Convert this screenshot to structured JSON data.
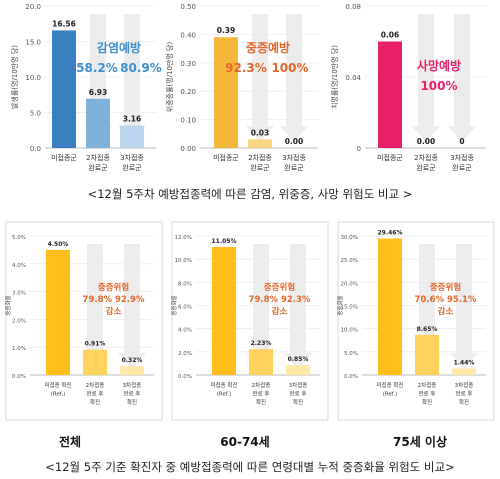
{
  "top_caption": "<12월 5주차 예방접종력에 따른 감염, 위중증, 사망 위험도 비교 >",
  "bottom_caption": "<12월 5주 기준 확진자 중 예방접종력에 따른 연령대별 누적 중증화율 위험도 비교>",
  "group_labels": [
    "전체",
    "60-74세",
    "75세 이상"
  ],
  "chart_data": [
    {
      "type": "bar",
      "ylabel": "발생률(명/10만명 당)",
      "ylim": [
        0,
        20
      ],
      "yticks": [
        "0.0",
        "5.0",
        "10.0",
        "15.0",
        "20.0"
      ],
      "categories": [
        "미접종군",
        "2차접종\n완료군",
        "3차접종\n완료군"
      ],
      "values": [
        16.56,
        6.93,
        3.16
      ],
      "value_labels": [
        "16.56",
        "6.93",
        "3.16"
      ],
      "colors": [
        "#3a7fbf",
        "#7fb2db",
        "#b9d6ee"
      ],
      "annotation": {
        "title": "감염예방",
        "values": [
          "58.2%",
          "80.9%"
        ],
        "color": "#3d8fcf"
      }
    },
    {
      "type": "bar",
      "ylabel": "위중증률(명/10만명 당)",
      "ylim": [
        0,
        0.5
      ],
      "yticks": [
        "0.00",
        "0.10",
        "0.20",
        "0.30",
        "0.40",
        "0.50"
      ],
      "categories": [
        "미접종군",
        "2차접종\n완료군",
        "3차접종\n완료군"
      ],
      "values": [
        0.39,
        0.03,
        0.0
      ],
      "value_labels": [
        "0.39",
        "0.03",
        "0.00"
      ],
      "colors": [
        "#f5b73a",
        "#f8d47e",
        "#fbe7b4"
      ],
      "annotation": {
        "title": "중증예방",
        "values": [
          "92.3%",
          "100%"
        ],
        "color": "#e2672a"
      }
    },
    {
      "type": "bar",
      "ylabel": "치명률(명/10만명 당)",
      "ylim": [
        0,
        0.08
      ],
      "yticks": [
        "0",
        "0.04",
        "0.08"
      ],
      "categories": [
        "미접종군",
        "2차접종\n완료군",
        "3차접종\n완료군"
      ],
      "values": [
        0.06,
        0.0,
        0.0
      ],
      "value_labels": [
        "0.06",
        "0.00",
        "0"
      ],
      "colors": [
        "#e8206a",
        "#f290b5",
        "#f7c2d6"
      ],
      "annotation": {
        "title": "사망예방",
        "values": [
          "100%"
        ],
        "color": "#e8206a"
      }
    },
    {
      "type": "bar",
      "ylabel": "중증화율",
      "ylim": [
        0,
        5
      ],
      "yticks": [
        "0.0%",
        "1.0%",
        "2.0%",
        "3.0%",
        "4.0%",
        "5.0%"
      ],
      "categories": [
        "미접종 확진\n(Ref.)",
        "2차접종\n완료 후\n확진",
        "3차접종\n완료 후\n확진"
      ],
      "values": [
        4.5,
        0.91,
        0.32
      ],
      "value_labels": [
        "4.50%",
        "0.91%",
        "0.32%"
      ],
      "colors": [
        "#ffbf1a",
        "#ffd25c",
        "#ffe9a8"
      ],
      "annotation": {
        "lines": [
          "중증위험",
          "79.8%  92.9%",
          "감소"
        ],
        "color": "#e2672a"
      }
    },
    {
      "type": "bar",
      "ylabel": "중증화율",
      "ylim": [
        0,
        12
      ],
      "yticks": [
        "0.0%",
        "2.0%",
        "4.0%",
        "6.0%",
        "8.0%",
        "10.0%",
        "12.0%"
      ],
      "categories": [
        "미접종 확진\n(Ref.)",
        "2차접종\n완료 후\n확진",
        "3차접종\n완료 후\n확진"
      ],
      "values": [
        11.05,
        2.23,
        0.85
      ],
      "value_labels": [
        "11.05%",
        "2.23%",
        "0.85%"
      ],
      "colors": [
        "#ffbf1a",
        "#ffd25c",
        "#ffe9a8"
      ],
      "annotation": {
        "lines": [
          "중증위험",
          "79.8%  92.3%",
          "감소"
        ],
        "color": "#e2672a"
      }
    },
    {
      "type": "bar",
      "ylabel": "중증화율",
      "ylim": [
        0,
        30
      ],
      "yticks": [
        "0.0%",
        "5.0%",
        "10.0%",
        "15.0%",
        "20.0%",
        "25.0%",
        "30.0%"
      ],
      "categories": [
        "미접종 확진\n(Ref.)",
        "2차접종\n완료 후\n확진",
        "3차접종\n완료 후\n확진"
      ],
      "values": [
        29.46,
        8.65,
        1.44
      ],
      "value_labels": [
        "29.46%",
        "8.65%",
        "1.44%"
      ],
      "colors": [
        "#ffbf1a",
        "#ffd25c",
        "#ffe9a8"
      ],
      "annotation": {
        "lines": [
          "중증위험",
          "70.6%  95.1%",
          "감소"
        ],
        "color": "#e2672a"
      }
    }
  ]
}
